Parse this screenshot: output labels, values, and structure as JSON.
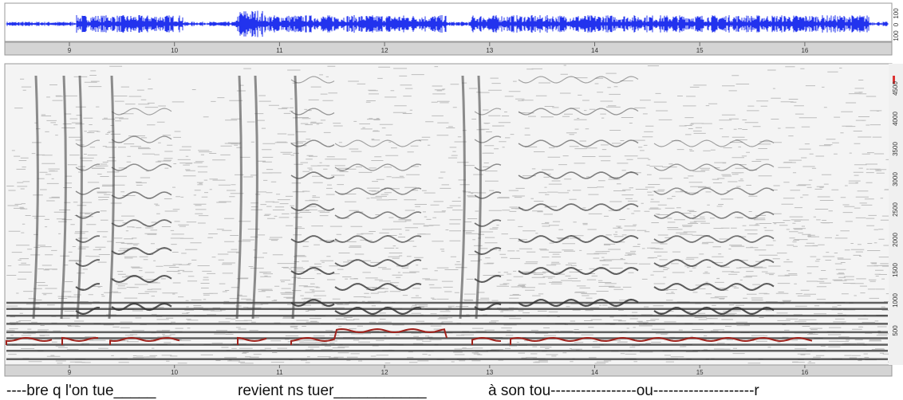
{
  "waveform_scale": [
    "100",
    "0",
    "100"
  ],
  "time_ruler_top": [
    "9",
    "10",
    "11",
    "12",
    "13",
    "14",
    "15",
    "16"
  ],
  "time_ruler_bottom": [
    "9",
    "10",
    "11",
    "12",
    "13",
    "14",
    "15",
    "16"
  ],
  "frequency_labels": [
    "500",
    "1000",
    "1500",
    "2000",
    "2500",
    "3000",
    "3500",
    "4000",
    "4500"
  ],
  "lyrics": [
    "----bre q l'on tue_____",
    "revient ns tuer___________",
    "à son tou-----------------ou--------------------r"
  ]
}
